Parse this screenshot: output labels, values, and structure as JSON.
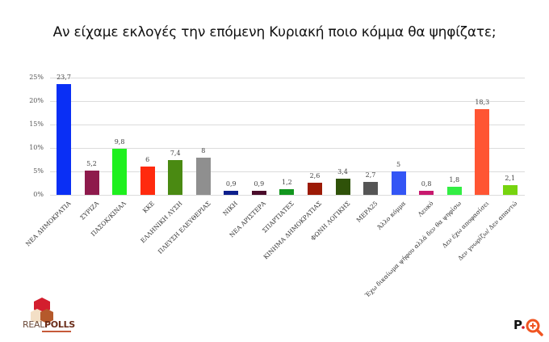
{
  "title": "Αν είχαμε εκλογές την επόμενη Κυριακή ποιο κόμμα θα ψηφίζατε;",
  "chart_data": {
    "type": "bar",
    "title": "Αν είχαμε εκλογές την επόμενη Κυριακή ποιο κόμμα θα ψηφίζατε;",
    "xlabel": "",
    "ylabel": "",
    "ylim": [
      0,
      25
    ],
    "yticks": [
      "0%",
      "5%",
      "10%",
      "15%",
      "20%",
      "25%"
    ],
    "grid": true,
    "legend": "none",
    "categories": [
      "ΝΕΑ ΔΗΜΟΚΡΑΤΙΑ",
      "ΣΥΡΙΖΑ",
      "ΠΑΣΟΚ/ΚΙΝΑΛ",
      "ΚΚΕ",
      "ΕΛΛΗΝΙΚΗ ΛΥΣΗ",
      "ΠΛΕΥΣΗ ΕΛΕΥΘΕΡΙΑΣ",
      "ΝΙΚΗ",
      "ΝΕΑ ΑΡΙΣΤΕΡΑ",
      "ΣΠΑΡΤΙΑΤΕΣ",
      "ΚΙΝΗΜΑ ΔΗΜΟΚΡΑΤΙΑΣ",
      "ΦΩΝΗ ΛΟΓΙΚΗΣ",
      "ΜΕΡΑ25",
      "Άλλο κόμμα",
      "Λευκό",
      "Έχω δικαίωμα ψήφου αλλά δεν θα ψηφίσω",
      "Δεν έχω αποφασίσει",
      "Δεν γνωρίζω/ Δεν απαντώ"
    ],
    "values": [
      23.7,
      5.2,
      9.8,
      6,
      7.4,
      8,
      0.9,
      0.9,
      1.2,
      2.6,
      3.4,
      2.7,
      5,
      0.8,
      1.8,
      18.3,
      2.1
    ],
    "value_labels": [
      "23,7",
      "5,2",
      "9,8",
      "6",
      "7,4",
      "8",
      "0,9",
      "0,9",
      "1,2",
      "2,6",
      "3,4",
      "2,7",
      "5",
      "0,8",
      "1,8",
      "18,3",
      "2,1"
    ],
    "colors": [
      "#0a2ff5",
      "#8e1a4c",
      "#1ef01e",
      "#ff2a0e",
      "#4a8a12",
      "#8f8f8f",
      "#0d1f8c",
      "#4a0c2a",
      "#12961e",
      "#9c1a06",
      "#2f5209",
      "#555555",
      "#3355f5",
      "#c8196e",
      "#33ee44",
      "#ff5533",
      "#77d40f"
    ]
  },
  "logos": {
    "left": {
      "text_light": "REAL",
      "text_bold": "POLLS"
    },
    "right": {
      "text": "P."
    }
  }
}
